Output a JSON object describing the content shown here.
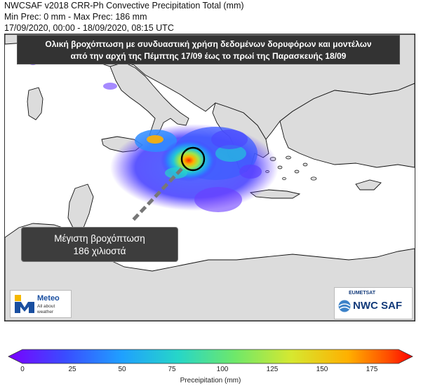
{
  "header": {
    "title": "NWCSAF v2018 CRR-Ph Convective Precipitation Total (mm)",
    "precip_range": "Min Prec: 0 mm - Max Prec: 186 mm",
    "period": "17/09/2020, 00:00 - 18/09/2020, 08:15 UTC"
  },
  "banner": {
    "line1": "Ολική βροχόπτωση με συνδυαστική χρήση δεδομένων δορυφόρων και μοντέλων",
    "line2": "από την αρχή της Πέμπτης 17/09 έως το πρωί της Παρασκευής 18/09"
  },
  "callout": {
    "line1": "Μέγιστη βροχόπτωση",
    "line2": "186 χιλιοστά"
  },
  "logos": {
    "meteo_name": "Meteo",
    "meteo_tagline_1": "All about",
    "meteo_tagline_2": "weather",
    "eumetsat": "EUMETSAT",
    "nwcsaf": "NWC SAF"
  },
  "colorbar": {
    "title": "Preceipitation (mm)",
    "ticks": [
      "0",
      "25",
      "50",
      "75",
      "100",
      "125",
      "150",
      "175"
    ],
    "colors": [
      "#7a00ff",
      "#3a4cff",
      "#1fa0ff",
      "#26d6c8",
      "#6ee86a",
      "#d6e830",
      "#ffb000",
      "#ff4d00",
      "#ff0000"
    ]
  },
  "map": {
    "land_color": "#dcdcdc",
    "sea_color": "#ffffff",
    "coast_color": "#111111",
    "max_marker_color": "#000000"
  }
}
